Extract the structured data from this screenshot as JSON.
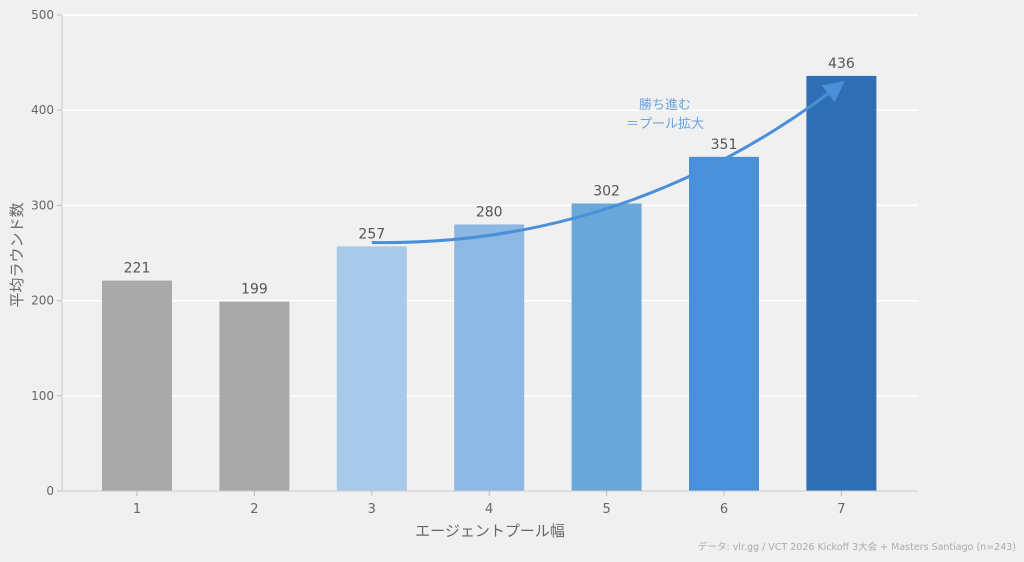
{
  "chart_data": {
    "type": "bar",
    "categories": [
      "1",
      "2",
      "3",
      "4",
      "5",
      "6",
      "7"
    ],
    "values": [
      221,
      199,
      257,
      280,
      302,
      351,
      436
    ],
    "bar_colors": [
      "#a9a9a9",
      "#a9a9a9",
      "#a9c9e9",
      "#8cb8e3",
      "#6aa8d9",
      "#4a8fd9",
      "#2e6fb3"
    ],
    "title": "",
    "xlabel": "エージェントプール幅",
    "ylabel": "平均ラウンド数",
    "ylim": [
      0,
      500
    ],
    "yticks": [
      0,
      100,
      200,
      300,
      400,
      500
    ],
    "grid": "horizontal",
    "annotation": {
      "lines": [
        "勝ち進む",
        "＝プール拡大"
      ],
      "arrow_from": [
        3,
        261
      ],
      "arrow_to": [
        7,
        428
      ],
      "color": "#4a8fd9"
    },
    "footnote": "データ: vlr.gg / VCT 2026 Kickoff 3大会 + Masters Santiago (n=243)"
  }
}
